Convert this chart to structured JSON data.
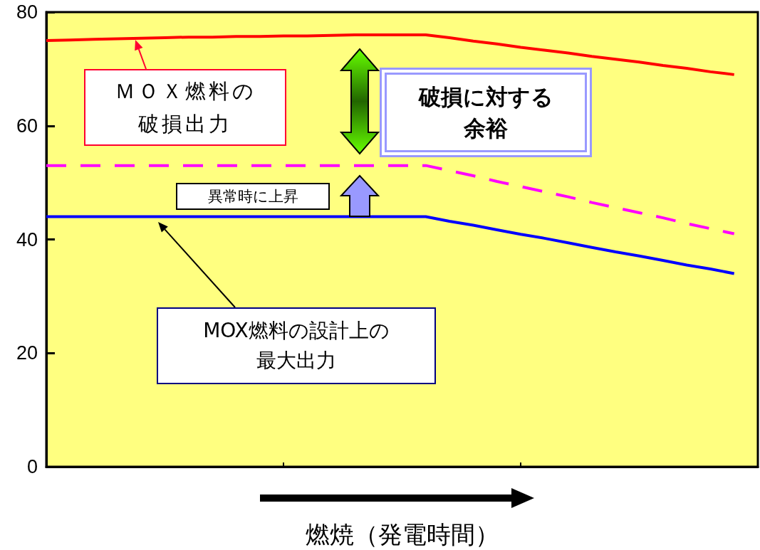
{
  "chart_data": {
    "type": "line",
    "xlabel": "燃焼（発電時間）",
    "categories": [
      null,
      null,
      null,
      null,
      null,
      null,
      null,
      null,
      null,
      null,
      null,
      null,
      null,
      null,
      null,
      null,
      null,
      null,
      null,
      null,
      null,
      null,
      null,
      null,
      null,
      null,
      null,
      null,
      null,
      null,
      null
    ],
    "ylim": [
      0,
      80
    ],
    "yticks": [
      0,
      20,
      40,
      60,
      80
    ],
    "grid": false,
    "marker": "none",
    "series": [
      {
        "color": "#ff0000",
        "line_style": "solid",
        "values": [
          75,
          75.1,
          75.2,
          75.3,
          75.4,
          75.5,
          75.6,
          75.6,
          75.7,
          75.7,
          75.8,
          75.8,
          75.9,
          76,
          76,
          76,
          76,
          75.5,
          74.9,
          74.4,
          73.8,
          73.3,
          72.8,
          72.2,
          71.7,
          71.2,
          70.6,
          70.1,
          69.5,
          69,
          null
        ]
      },
      {
        "color": "#ff00ff",
        "line_style": "dashed",
        "values": [
          53,
          53,
          53,
          53,
          53,
          53,
          53,
          53,
          53,
          53,
          53,
          53,
          53,
          53,
          53,
          53,
          53,
          52.1,
          51.2,
          50.2,
          49.3,
          48.4,
          47.5,
          46.5,
          45.6,
          44.7,
          43.8,
          42.8,
          41.9,
          41,
          null
        ]
      },
      {
        "color": "#0000ff",
        "line_style": "solid",
        "values": [
          44,
          44,
          44,
          44,
          44,
          44,
          44,
          44,
          44,
          44,
          44,
          44,
          44,
          44,
          44,
          44,
          44,
          43.2,
          42.5,
          41.7,
          40.9,
          40.2,
          39.4,
          38.6,
          37.8,
          37.1,
          36.3,
          35.5,
          34.8,
          34,
          null
        ]
      }
    ],
    "annotations": [
      "ＭＯＸ燃料の破損出力",
      "破損に対する余裕",
      "異常時に上昇",
      "MOX燃料の設計上の最大出力"
    ]
  }
}
